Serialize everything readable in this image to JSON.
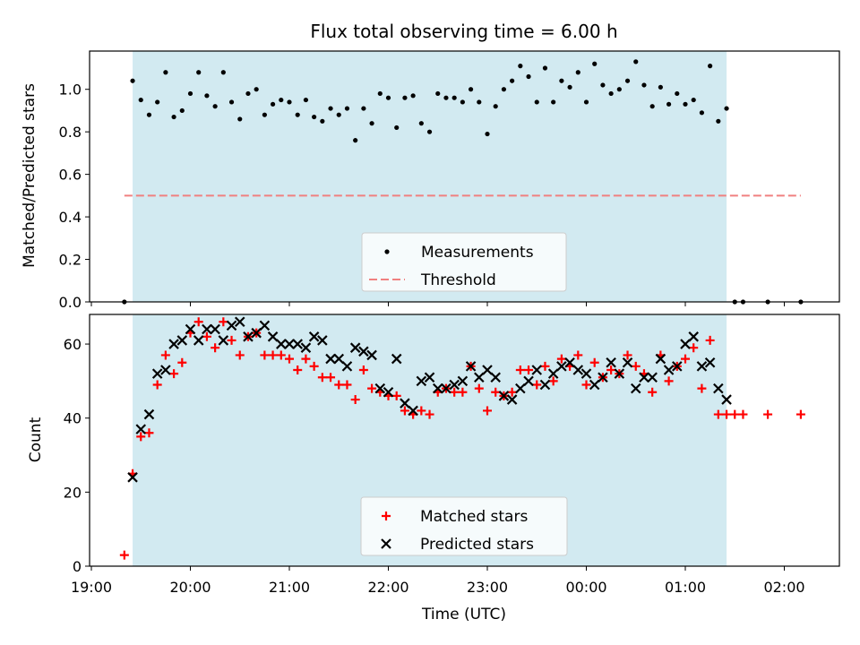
{
  "chart_data": [
    {
      "type": "scatter",
      "title": "Flux total observing time = 6.00 h",
      "xlabel": "",
      "ylabel": "Matched/Predicted stars",
      "ylim": [
        0,
        1.18
      ],
      "yticks": [
        "0.0",
        "0.2",
        "0.4",
        "0.6",
        "0.8",
        "1.0"
      ],
      "ytick_values": [
        0,
        0.2,
        0.4,
        0.6,
        0.8,
        1.0
      ],
      "shaded_span": [
        "19:25",
        "01:25"
      ],
      "legend": {
        "placement": "lower center",
        "measurements_label": "Measurements",
        "threshold_label": "Threshold"
      },
      "threshold": {
        "value": 0.5,
        "color": "#f08080",
        "from": "19:20",
        "to": "02:10"
      },
      "series": [
        {
          "name": "Measurements",
          "color": "#000000",
          "points": [
            [
              "19:20",
              0.0
            ],
            [
              "19:25",
              1.04
            ],
            [
              "19:30",
              0.95
            ],
            [
              "19:35",
              0.88
            ],
            [
              "19:40",
              0.94
            ],
            [
              "19:45",
              1.08
            ],
            [
              "19:50",
              0.87
            ],
            [
              "19:55",
              0.9
            ],
            [
              "20:00",
              0.98
            ],
            [
              "20:05",
              1.08
            ],
            [
              "20:10",
              0.97
            ],
            [
              "20:15",
              0.92
            ],
            [
              "20:20",
              1.08
            ],
            [
              "20:25",
              0.94
            ],
            [
              "20:30",
              0.86
            ],
            [
              "20:35",
              0.98
            ],
            [
              "20:40",
              1.0
            ],
            [
              "20:45",
              0.88
            ],
            [
              "20:50",
              0.93
            ],
            [
              "20:55",
              0.95
            ],
            [
              "21:00",
              0.94
            ],
            [
              "21:05",
              0.88
            ],
            [
              "21:10",
              0.95
            ],
            [
              "21:15",
              0.87
            ],
            [
              "21:20",
              0.85
            ],
            [
              "21:25",
              0.91
            ],
            [
              "21:30",
              0.88
            ],
            [
              "21:35",
              0.91
            ],
            [
              "21:40",
              0.76
            ],
            [
              "21:45",
              0.91
            ],
            [
              "21:50",
              0.84
            ],
            [
              "21:55",
              0.98
            ],
            [
              "22:00",
              0.96
            ],
            [
              "22:05",
              0.82
            ],
            [
              "22:10",
              0.96
            ],
            [
              "22:15",
              0.97
            ],
            [
              "22:20",
              0.84
            ],
            [
              "22:25",
              0.8
            ],
            [
              "22:30",
              0.98
            ],
            [
              "22:35",
              0.96
            ],
            [
              "22:40",
              0.96
            ],
            [
              "22:45",
              0.94
            ],
            [
              "22:50",
              1.0
            ],
            [
              "22:55",
              0.94
            ],
            [
              "23:00",
              0.79
            ],
            [
              "23:05",
              0.92
            ],
            [
              "23:10",
              1.0
            ],
            [
              "23:15",
              1.04
            ],
            [
              "23:20",
              1.11
            ],
            [
              "23:25",
              1.06
            ],
            [
              "23:30",
              0.94
            ],
            [
              "23:35",
              1.1
            ],
            [
              "23:40",
              0.94
            ],
            [
              "23:45",
              1.04
            ],
            [
              "23:50",
              1.01
            ],
            [
              "23:55",
              1.08
            ],
            [
              "00:00",
              0.94
            ],
            [
              "00:05",
              1.12
            ],
            [
              "00:10",
              1.02
            ],
            [
              "00:15",
              0.98
            ],
            [
              "00:20",
              1.0
            ],
            [
              "00:25",
              1.04
            ],
            [
              "00:30",
              1.13
            ],
            [
              "00:35",
              1.02
            ],
            [
              "00:40",
              0.92
            ],
            [
              "00:45",
              1.01
            ],
            [
              "00:50",
              0.93
            ],
            [
              "00:55",
              0.98
            ],
            [
              "01:00",
              0.93
            ],
            [
              "01:05",
              0.95
            ],
            [
              "01:10",
              0.89
            ],
            [
              "01:15",
              1.11
            ],
            [
              "01:20",
              0.85
            ],
            [
              "01:25",
              0.91
            ],
            [
              "01:30",
              0.0
            ],
            [
              "01:35",
              0.0
            ],
            [
              "01:50",
              0.0
            ],
            [
              "02:10",
              0.0
            ]
          ]
        }
      ]
    },
    {
      "type": "scatter",
      "title": "",
      "xlabel": "Time (UTC)",
      "ylabel": "Count",
      "ylim": [
        0,
        68
      ],
      "yticks": [
        "0",
        "20",
        "40",
        "60"
      ],
      "ytick_values": [
        0,
        20,
        40,
        60
      ],
      "xticks": [
        "19:00",
        "20:00",
        "21:00",
        "22:00",
        "23:00",
        "00:00",
        "01:00",
        "02:00"
      ],
      "shaded_span": [
        "19:25",
        "01:25"
      ],
      "legend": {
        "placement": "lower center",
        "matched_label": "Matched stars",
        "predicted_label": "Predicted stars"
      },
      "series": [
        {
          "name": "Matched stars",
          "color": "#ff0000",
          "points": [
            [
              "19:20",
              3
            ],
            [
              "19:25",
              25
            ],
            [
              "19:30",
              35
            ],
            [
              "19:35",
              36
            ],
            [
              "19:40",
              49
            ],
            [
              "19:45",
              57
            ],
            [
              "19:50",
              52
            ],
            [
              "19:55",
              55
            ],
            [
              "20:00",
              63
            ],
            [
              "20:05",
              66
            ],
            [
              "20:10",
              62
            ],
            [
              "20:15",
              59
            ],
            [
              "20:20",
              66
            ],
            [
              "20:25",
              61
            ],
            [
              "20:30",
              57
            ],
            [
              "20:35",
              62
            ],
            [
              "20:40",
              63
            ],
            [
              "20:45",
              57
            ],
            [
              "20:50",
              57
            ],
            [
              "20:55",
              57
            ],
            [
              "21:00",
              56
            ],
            [
              "21:05",
              53
            ],
            [
              "21:10",
              56
            ],
            [
              "21:15",
              54
            ],
            [
              "21:20",
              51
            ],
            [
              "21:25",
              51
            ],
            [
              "21:30",
              49
            ],
            [
              "21:35",
              49
            ],
            [
              "21:40",
              45
            ],
            [
              "21:45",
              53
            ],
            [
              "21:50",
              48
            ],
            [
              "21:55",
              47
            ],
            [
              "22:00",
              46
            ],
            [
              "22:05",
              46
            ],
            [
              "22:10",
              42
            ],
            [
              "22:15",
              41
            ],
            [
              "22:20",
              42
            ],
            [
              "22:25",
              41
            ],
            [
              "22:30",
              47
            ],
            [
              "22:35",
              48
            ],
            [
              "22:40",
              47
            ],
            [
              "22:45",
              47
            ],
            [
              "22:50",
              54
            ],
            [
              "22:55",
              48
            ],
            [
              "23:00",
              42
            ],
            [
              "23:05",
              47
            ],
            [
              "23:10",
              46
            ],
            [
              "23:15",
              47
            ],
            [
              "23:20",
              53
            ],
            [
              "23:25",
              53
            ],
            [
              "23:30",
              49
            ],
            [
              "23:35",
              54
            ],
            [
              "23:40",
              50
            ],
            [
              "23:45",
              56
            ],
            [
              "23:50",
              54
            ],
            [
              "23:55",
              57
            ],
            [
              "00:00",
              49
            ],
            [
              "00:05",
              55
            ],
            [
              "00:10",
              51
            ],
            [
              "00:15",
              53
            ],
            [
              "00:20",
              52
            ],
            [
              "00:25",
              57
            ],
            [
              "00:30",
              54
            ],
            [
              "00:35",
              52
            ],
            [
              "00:40",
              47
            ],
            [
              "00:45",
              57
            ],
            [
              "00:50",
              50
            ],
            [
              "00:55",
              54
            ],
            [
              "01:00",
              56
            ],
            [
              "01:05",
              59
            ],
            [
              "01:10",
              48
            ],
            [
              "01:15",
              61
            ],
            [
              "01:20",
              41
            ],
            [
              "01:25",
              41
            ],
            [
              "01:30",
              41
            ],
            [
              "01:35",
              41
            ],
            [
              "01:50",
              41
            ],
            [
              "02:10",
              41
            ]
          ]
        },
        {
          "name": "Predicted stars",
          "color": "#000000",
          "points": [
            [
              "19:25",
              24
            ],
            [
              "19:30",
              37
            ],
            [
              "19:35",
              41
            ],
            [
              "19:40",
              52
            ],
            [
              "19:45",
              53
            ],
            [
              "19:50",
              60
            ],
            [
              "19:55",
              61
            ],
            [
              "20:00",
              64
            ],
            [
              "20:05",
              61
            ],
            [
              "20:10",
              64
            ],
            [
              "20:15",
              64
            ],
            [
              "20:20",
              61
            ],
            [
              "20:25",
              65
            ],
            [
              "20:30",
              66
            ],
            [
              "20:35",
              62
            ],
            [
              "20:40",
              63
            ],
            [
              "20:45",
              65
            ],
            [
              "20:50",
              62
            ],
            [
              "20:55",
              60
            ],
            [
              "21:00",
              60
            ],
            [
              "21:05",
              60
            ],
            [
              "21:10",
              59
            ],
            [
              "21:15",
              62
            ],
            [
              "21:20",
              61
            ],
            [
              "21:25",
              56
            ],
            [
              "21:30",
              56
            ],
            [
              "21:35",
              54
            ],
            [
              "21:40",
              59
            ],
            [
              "21:45",
              58
            ],
            [
              "21:50",
              57
            ],
            [
              "21:55",
              48
            ],
            [
              "22:00",
              47
            ],
            [
              "22:05",
              56
            ],
            [
              "22:10",
              44
            ],
            [
              "22:15",
              42
            ],
            [
              "22:20",
              50
            ],
            [
              "22:25",
              51
            ],
            [
              "22:30",
              48
            ],
            [
              "22:35",
              48
            ],
            [
              "22:40",
              49
            ],
            [
              "22:45",
              50
            ],
            [
              "22:50",
              54
            ],
            [
              "22:55",
              51
            ],
            [
              "23:00",
              53
            ],
            [
              "23:05",
              51
            ],
            [
              "23:10",
              46
            ],
            [
              "23:15",
              45
            ],
            [
              "23:20",
              48
            ],
            [
              "23:25",
              50
            ],
            [
              "23:30",
              53
            ],
            [
              "23:35",
              49
            ],
            [
              "23:40",
              52
            ],
            [
              "23:45",
              54
            ],
            [
              "23:50",
              55
            ],
            [
              "23:55",
              53
            ],
            [
              "00:00",
              52
            ],
            [
              "00:05",
              49
            ],
            [
              "00:10",
              51
            ],
            [
              "00:15",
              55
            ],
            [
              "00:20",
              52
            ],
            [
              "00:25",
              55
            ],
            [
              "00:30",
              48
            ],
            [
              "00:35",
              51
            ],
            [
              "00:40",
              51
            ],
            [
              "00:45",
              56
            ],
            [
              "00:50",
              53
            ],
            [
              "00:55",
              54
            ],
            [
              "01:00",
              60
            ],
            [
              "01:05",
              62
            ],
            [
              "01:10",
              54
            ],
            [
              "01:15",
              55
            ],
            [
              "01:20",
              48
            ],
            [
              "01:25",
              45
            ]
          ]
        }
      ]
    }
  ]
}
